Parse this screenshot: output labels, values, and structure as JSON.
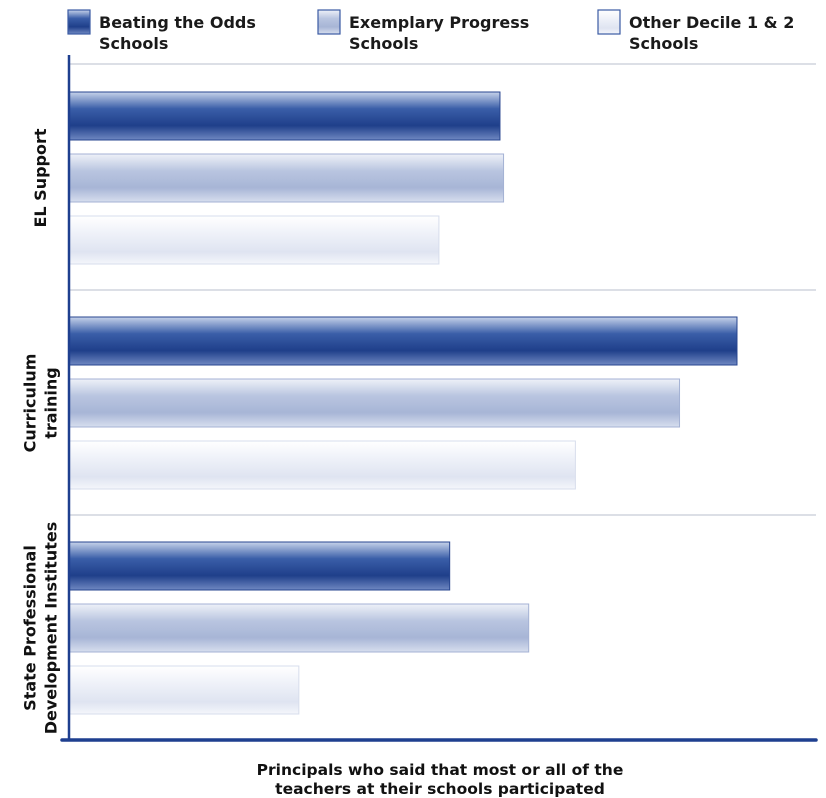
{
  "chart_data": {
    "type": "bar",
    "orientation": "horizontal",
    "categories": [
      "EL Support",
      "Curriculum training",
      "State Professional Development Institutes"
    ],
    "category_label_lines": [
      [
        "EL Support"
      ],
      [
        "Curriculum",
        "training"
      ],
      [
        "State Professional",
        "Development Institutes"
      ]
    ],
    "series": [
      {
        "name": "Beating the Odds Schools",
        "legend_lines": [
          "Beating the Odds",
          "Schools"
        ],
        "values": [
          60,
          93,
          53
        ],
        "color": "#2e4f9c"
      },
      {
        "name": "Exemplary Progress Schools",
        "legend_lines": [
          "Exemplary Progress",
          "Schools"
        ],
        "values": [
          60.5,
          85,
          64
        ],
        "color": "#b4c0dd"
      },
      {
        "name": "Other Decile 1 & 2 Schools",
        "legend_lines": [
          "Other Decile 1 & 2",
          "Schools"
        ],
        "values": [
          51.5,
          70.5,
          32
        ],
        "color": "#eceff8"
      }
    ],
    "xlabel_lines": [
      "Principals who said that most or all of the",
      "teachers at their schools participated"
    ],
    "xlim": [
      0,
      104
    ],
    "axis_color": "#1e3f8f",
    "grid": false,
    "legend": "top",
    "separator_lines": true
  }
}
